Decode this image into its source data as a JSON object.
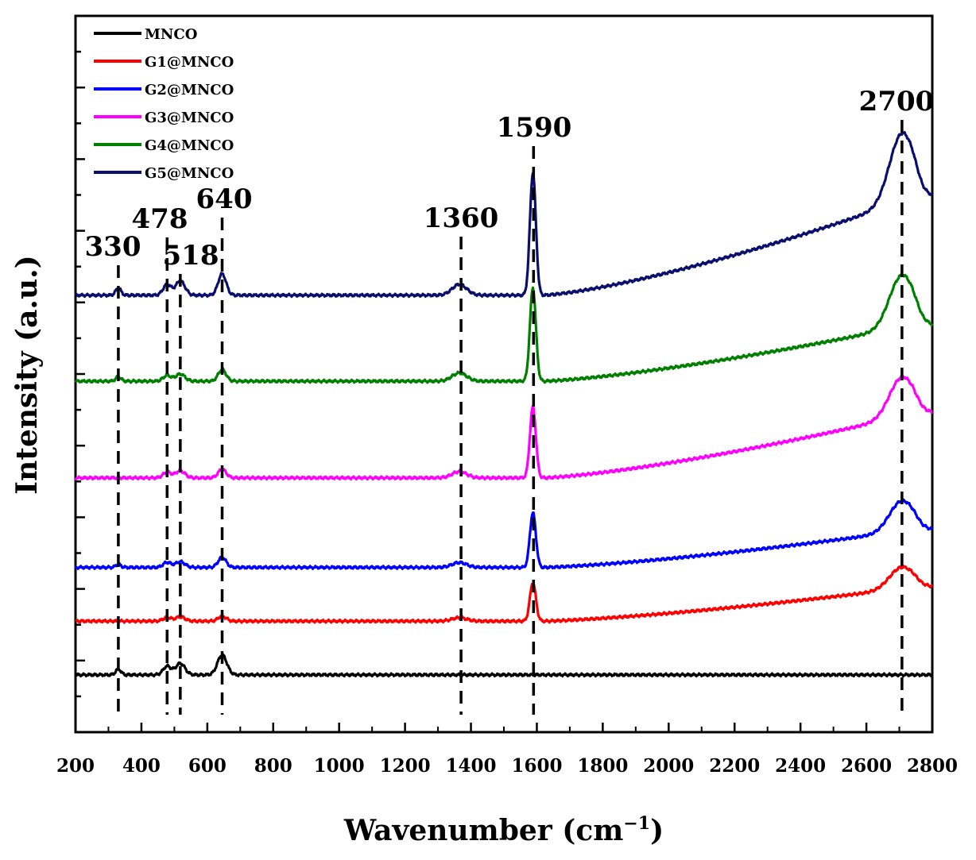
{
  "chart_data": {
    "type": "line",
    "title": "",
    "xlabel": "Wavenumber (cm",
    "xlabel_sup": "−1",
    "xlabel_close": ")",
    "ylabel": "Intensity (a.u.)",
    "xlim": [
      200,
      2800
    ],
    "ylim": [
      0,
      10
    ],
    "x_ticks": [
      200,
      400,
      600,
      800,
      1000,
      1200,
      1400,
      1600,
      1800,
      2000,
      2200,
      2400,
      2600,
      2800
    ],
    "y_ticks_visible": false,
    "peak_markers": [
      {
        "label": "330",
        "x": 330
      },
      {
        "label": "478",
        "x": 478
      },
      {
        "label": "518",
        "x": 518
      },
      {
        "label": "640",
        "x": 645
      },
      {
        "label": "1360",
        "x": 1370
      },
      {
        "label": "1590",
        "x": 1590
      },
      {
        "label": "2700",
        "x": 2708
      }
    ],
    "series": [
      {
        "name": "MNCO",
        "color": "#000000",
        "baseline": 0.8,
        "g_scale": 0,
        "slope": 0,
        "peaks": [
          [
            330,
            0.08,
            8
          ],
          [
            478,
            0.12,
            12
          ],
          [
            518,
            0.16,
            14
          ],
          [
            645,
            0.28,
            14
          ]
        ]
      },
      {
        "name": "G1@MNCO",
        "color": "#ff0000",
        "baseline": 1.55,
        "g_scale": 0.6,
        "slope": 0.45,
        "peaks": [
          [
            478,
            0.05,
            12
          ],
          [
            518,
            0.06,
            14
          ],
          [
            645,
            0.07,
            12
          ]
        ]
      },
      {
        "name": "G2@MNCO",
        "color": "#0000ff",
        "baseline": 2.3,
        "g_scale": 0.85,
        "slope": 0.5,
        "peaks": [
          [
            330,
            0.04,
            8
          ],
          [
            478,
            0.07,
            12
          ],
          [
            518,
            0.08,
            14
          ],
          [
            645,
            0.14,
            12
          ]
        ]
      },
      {
        "name": "G3@MNCO",
        "color": "#ff00ff",
        "baseline": 3.55,
        "g_scale": 1.1,
        "slope": 0.85,
        "peaks": [
          [
            478,
            0.08,
            12
          ],
          [
            518,
            0.1,
            14
          ],
          [
            645,
            0.12,
            12
          ]
        ]
      },
      {
        "name": "G4@MNCO",
        "color": "#008000",
        "baseline": 4.9,
        "g_scale": 1.45,
        "slope": 0.75,
        "peaks": [
          [
            330,
            0.06,
            8
          ],
          [
            478,
            0.08,
            12
          ],
          [
            518,
            0.1,
            14
          ],
          [
            645,
            0.16,
            12
          ]
        ]
      },
      {
        "name": "G5@MNCO",
        "color": "#0a0f6e",
        "baseline": 6.1,
        "g_scale": 1.9,
        "slope": 1.3,
        "peaks": [
          [
            330,
            0.1,
            8
          ],
          [
            478,
            0.15,
            12
          ],
          [
            518,
            0.2,
            14
          ],
          [
            645,
            0.3,
            12
          ]
        ]
      }
    ],
    "legend_position": "top-left"
  }
}
